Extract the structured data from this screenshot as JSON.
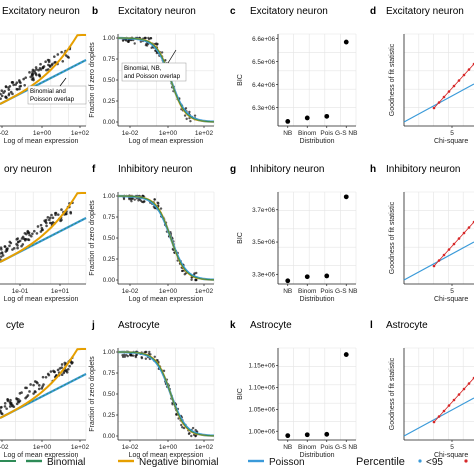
{
  "colors": {
    "binomial": "#2e8b57",
    "negbin": "#e69f00",
    "poisson": "#3a9ad9",
    "points": "#111111",
    "grid": "#e4e4e4",
    "pct_low": "#3a9ad9",
    "pct_high": "#d62728"
  },
  "legend": {
    "items": [
      "Binomial",
      "Negative binomial",
      "Poisson"
    ],
    "percentile_title": "Percentile",
    "percentile_items": [
      "<95"
    ]
  },
  "chart_data": [
    {
      "panel": "a",
      "type": "line",
      "title": "Excitatory neuron",
      "xlabel": "Log of mean expression",
      "ylabel": "",
      "x_ticks": [
        "e-02",
        "1e+00",
        "1e+02"
      ],
      "annotation": "Binomial and Poisson overlap",
      "series": [
        {
          "name": "Binomial"
        },
        {
          "name": "Negative binomial"
        },
        {
          "name": "Poisson"
        }
      ]
    },
    {
      "panel": "b",
      "type": "line",
      "title": "Excitatory neuron",
      "xlabel": "Log of mean expression",
      "ylabel": "Fraction of zero droplets",
      "x_ticks": [
        "1e-02",
        "1e+00",
        "1e+02"
      ],
      "y_ticks": [
        "0.00",
        "0.25",
        "0.50",
        "0.75",
        "1.00"
      ],
      "ylim": [
        0,
        1
      ],
      "annotation": "Binomial, NB, and Poisson overlap",
      "series": [
        {
          "name": "Binomial"
        },
        {
          "name": "Negative binomial"
        },
        {
          "name": "Poisson"
        }
      ]
    },
    {
      "panel": "c",
      "type": "scatter",
      "title": "Excitatory neuron",
      "xlabel": "Distribution",
      "ylabel": "BIC",
      "categories": [
        "NB",
        "Binom",
        "Pois",
        "G-S NB"
      ],
      "y_ticks": [
        "6.3e+06",
        "6.4e+06",
        "6.5e+06",
        "6.6e+06"
      ],
      "ylim": [
        6220000.0,
        6620000.0
      ],
      "values": [
        6240000.0,
        6255000.0,
        6262000.0,
        6585000.0
      ]
    },
    {
      "panel": "d",
      "type": "line",
      "title": "Excitatory neuron",
      "xlabel": "Chi-square",
      "ylabel": "Goodness of fit statistic",
      "x_ticks": [
        "5"
      ]
    },
    {
      "panel": "e",
      "type": "line",
      "title": "ory neuron",
      "xlabel": "Log of mean expression",
      "ylabel": "",
      "x_ticks": [
        "1e-01",
        "1e+01"
      ],
      "series": [
        {
          "name": "Binomial"
        },
        {
          "name": "Negative binomial"
        },
        {
          "name": "Poisson"
        }
      ]
    },
    {
      "panel": "f",
      "type": "line",
      "title": "Inhibitory neuron",
      "xlabel": "Log of mean expression",
      "ylabel": "Fraction of zero droplets",
      "x_ticks": [
        "1e-02",
        "1e+00",
        "1e+02"
      ],
      "y_ticks": [
        "0.00",
        "0.25",
        "0.50",
        "0.75",
        "1.00"
      ],
      "ylim": [
        0,
        1
      ],
      "series": [
        {
          "name": "Binomial"
        },
        {
          "name": "Negative binomial"
        },
        {
          "name": "Poisson"
        }
      ]
    },
    {
      "panel": "g",
      "type": "scatter",
      "title": "Inhibitory neuron",
      "xlabel": "Distribution",
      "ylabel": "BIC",
      "categories": [
        "NB",
        "Binom",
        "Pois",
        "G-S NB"
      ],
      "y_ticks": [
        "3.3e+06",
        "3.5e+06",
        "3.7e+06"
      ],
      "ylim": [
        3240000.0,
        3810000.0
      ],
      "values": [
        3260000.0,
        3285000.0,
        3290000.0,
        3780000.0
      ]
    },
    {
      "panel": "h",
      "type": "line",
      "title": "Inhibitory neuron",
      "xlabel": "Chi-square",
      "ylabel": "Goodness of fit statistic",
      "x_ticks": [
        "5"
      ]
    },
    {
      "panel": "i",
      "type": "line",
      "title": "cyte",
      "xlabel": "Log of mean expression",
      "ylabel": "",
      "x_ticks": [
        "e-02",
        "1e+00",
        "1e+02"
      ],
      "series": [
        {
          "name": "Binomial"
        },
        {
          "name": "Negative binomial"
        },
        {
          "name": "Poisson"
        }
      ]
    },
    {
      "panel": "j",
      "type": "line",
      "title": "Astrocyte",
      "xlabel": "Log of mean expression",
      "ylabel": "Fraction of zero droplets",
      "x_ticks": [
        "1e-02",
        "1e+00",
        "1e+02"
      ],
      "y_ticks": [
        "0.00",
        "0.25",
        "0.50",
        "0.75",
        "1.00"
      ],
      "ylim": [
        0,
        1
      ],
      "series": [
        {
          "name": "Binomial"
        },
        {
          "name": "Negative binomial"
        },
        {
          "name": "Poisson"
        }
      ]
    },
    {
      "panel": "k",
      "type": "scatter",
      "title": "Astrocyte",
      "xlabel": "Distribution",
      "ylabel": "BIC",
      "categories": [
        "NB",
        "Binom",
        "Pois",
        "G-S NB"
      ],
      "y_ticks": [
        "1.00e+06",
        "1.05e+06",
        "1.10e+06",
        "1.15e+06"
      ],
      "ylim": [
        980000.0,
        1190000.0
      ],
      "values": [
        990000.0,
        992000.0,
        993000.0,
        1175000.0
      ]
    },
    {
      "panel": "l",
      "type": "line",
      "title": "Astrocyte",
      "xlabel": "Chi-square",
      "ylabel": "Goodness of fit statistic",
      "x_ticks": [
        "5"
      ]
    }
  ]
}
